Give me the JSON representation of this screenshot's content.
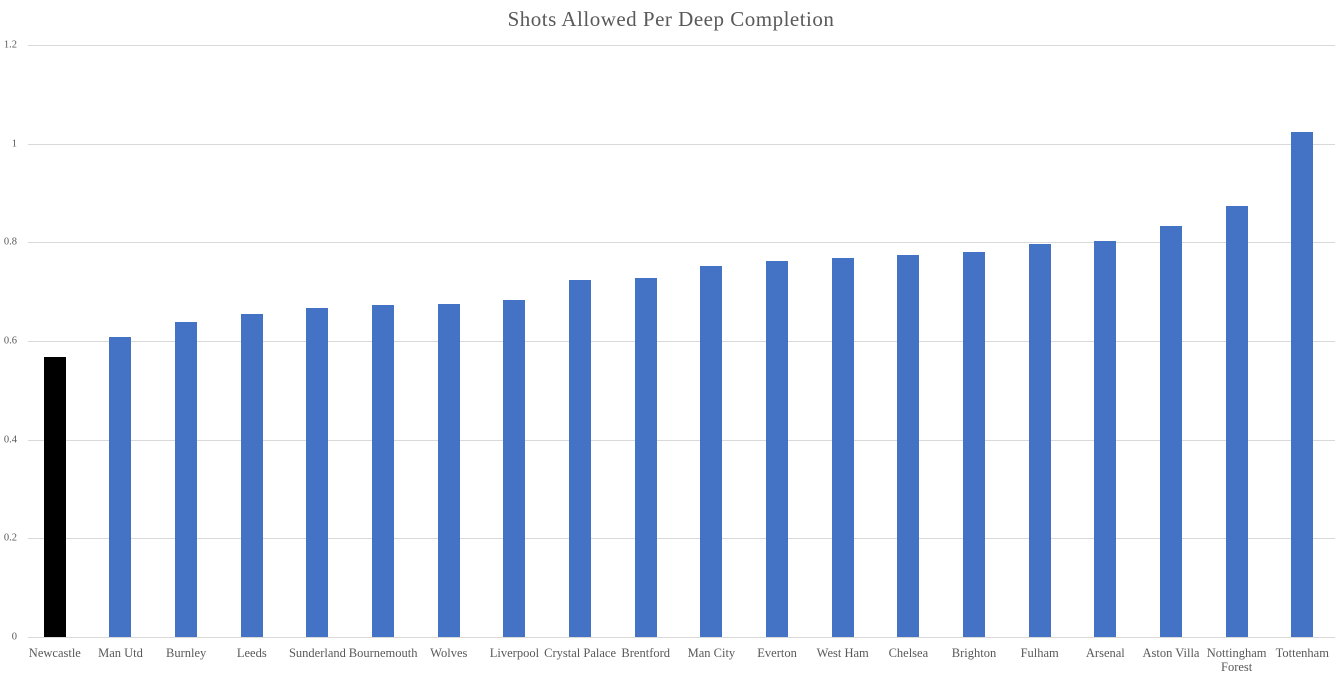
{
  "chart_data": {
    "type": "bar",
    "title": "Shots Allowed Per Deep Completion",
    "xlabel": "",
    "ylabel": "",
    "categories": [
      "Newcastle",
      "Man Utd",
      "Burnley",
      "Leeds",
      "Sunderland",
      "Bournemouth",
      "Wolves",
      "Liverpool",
      "Crystal Palace",
      "Brentford",
      "Man City",
      "Everton",
      "West Ham",
      "Chelsea",
      "Brighton",
      "Fulham",
      "Arsenal",
      "Aston Villa",
      "Nottingham Forest",
      "Tottenham"
    ],
    "x_label_lines": [
      [
        "Newcastle"
      ],
      [
        "Man Utd"
      ],
      [
        "Burnley"
      ],
      [
        "Leeds"
      ],
      [
        "Sunderland"
      ],
      [
        "Bournemouth"
      ],
      [
        "Wolves"
      ],
      [
        "Liverpool"
      ],
      [
        "Crystal Palace"
      ],
      [
        "Brentford"
      ],
      [
        "Man City"
      ],
      [
        "Everton"
      ],
      [
        "West Ham"
      ],
      [
        "Chelsea"
      ],
      [
        "Brighton"
      ],
      [
        "Fulham"
      ],
      [
        "Arsenal"
      ],
      [
        "Aston Villa"
      ],
      [
        "Nottingham",
        "Forest"
      ],
      [
        "Tottenham"
      ]
    ],
    "values": [
      0.568,
      0.608,
      0.638,
      0.655,
      0.666,
      0.672,
      0.675,
      0.684,
      0.724,
      0.728,
      0.752,
      0.762,
      0.768,
      0.774,
      0.781,
      0.797,
      0.802,
      0.833,
      0.874,
      1.024
    ],
    "highlighted_category": "Newcastle",
    "ylim": [
      0,
      1.2
    ],
    "yticks": [
      0,
      0.2,
      0.4,
      0.6,
      0.8,
      1,
      1.2
    ],
    "ytick_labels": [
      "0",
      "0.2",
      "0.4",
      "0.6",
      "0.8",
      "1",
      "1.2"
    ],
    "grid": true,
    "legend": "none",
    "colors": {
      "bar": "#4472C4",
      "highlight_bar": "#000000",
      "gridline": "#D9D9D9",
      "title_text": "#595959",
      "axis_text": "#595959"
    }
  }
}
